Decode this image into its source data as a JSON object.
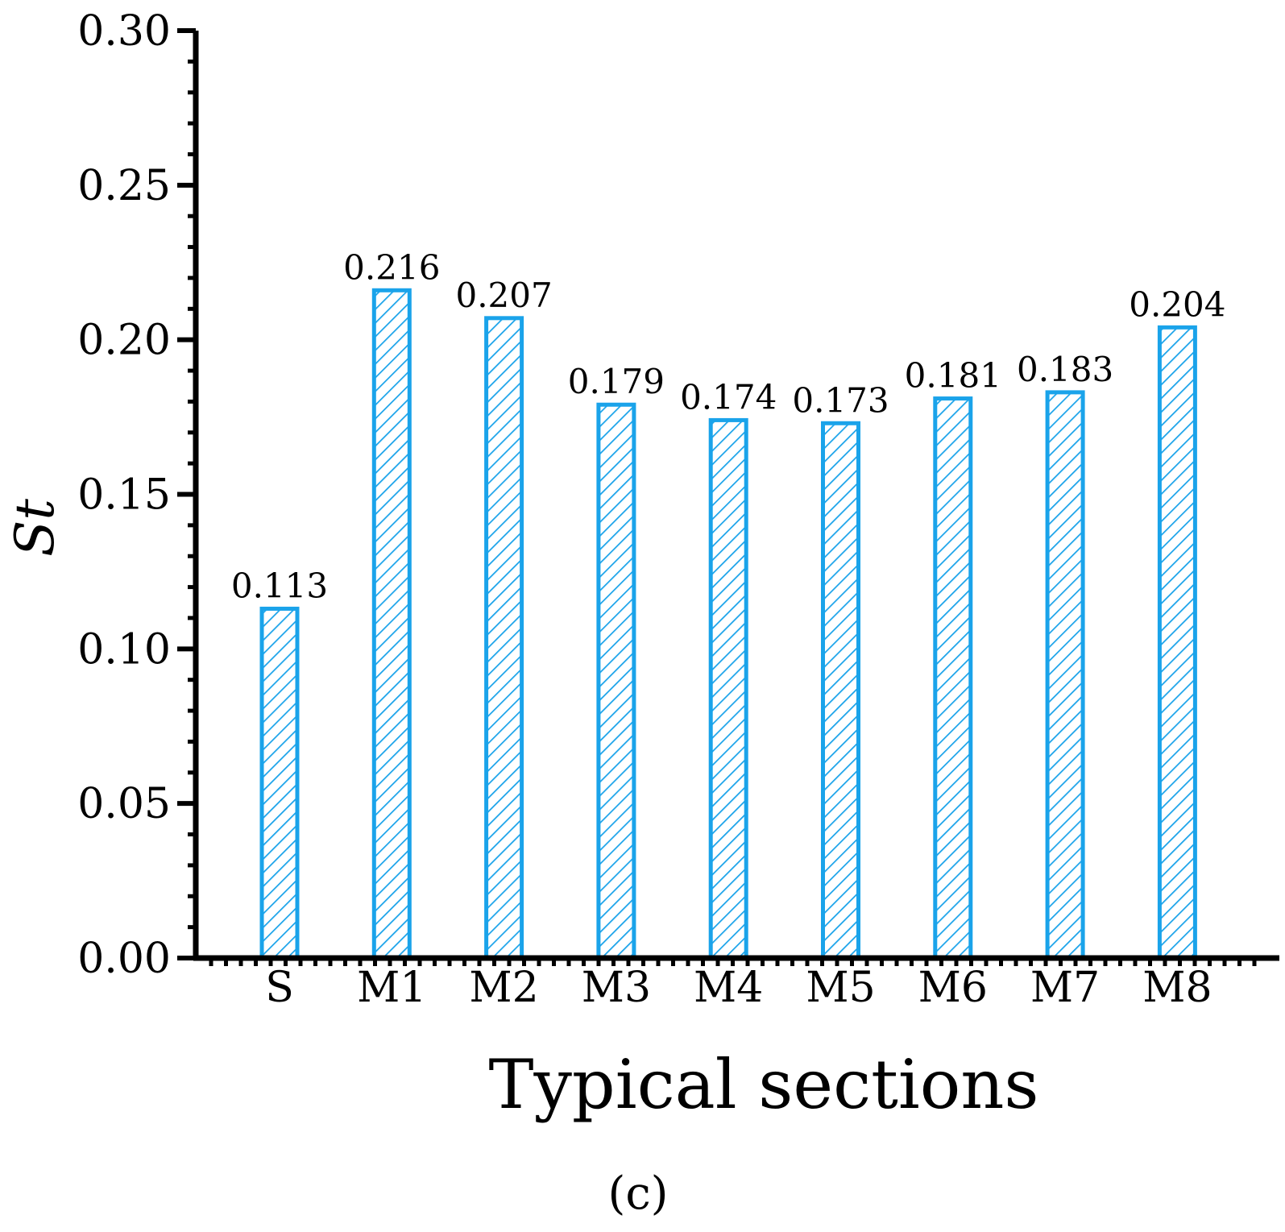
{
  "chart_data": {
    "type": "bar",
    "categories": [
      "S",
      "M1",
      "M2",
      "M3",
      "M4",
      "M5",
      "M6",
      "M7",
      "M8"
    ],
    "values": [
      0.113,
      0.216,
      0.207,
      0.179,
      0.174,
      0.173,
      0.181,
      0.183,
      0.204
    ],
    "value_labels": [
      "0.113",
      "0.216",
      "0.207",
      "0.179",
      "0.174",
      "0.173",
      "0.181",
      "0.183",
      "0.204"
    ],
    "xlabel": "Typical sections",
    "ylabel": "St",
    "ylim": [
      0,
      0.3
    ],
    "yticks": [
      0.0,
      0.05,
      0.1,
      0.15,
      0.2,
      0.25,
      0.3
    ],
    "ytick_labels": [
      "0.00",
      "0.05",
      "0.10",
      "0.15",
      "0.20",
      "0.25",
      "0.30"
    ],
    "grid": false,
    "bar_color": "#1aa3ea",
    "bar_fill": "hatched",
    "panel_label": "(c)"
  }
}
